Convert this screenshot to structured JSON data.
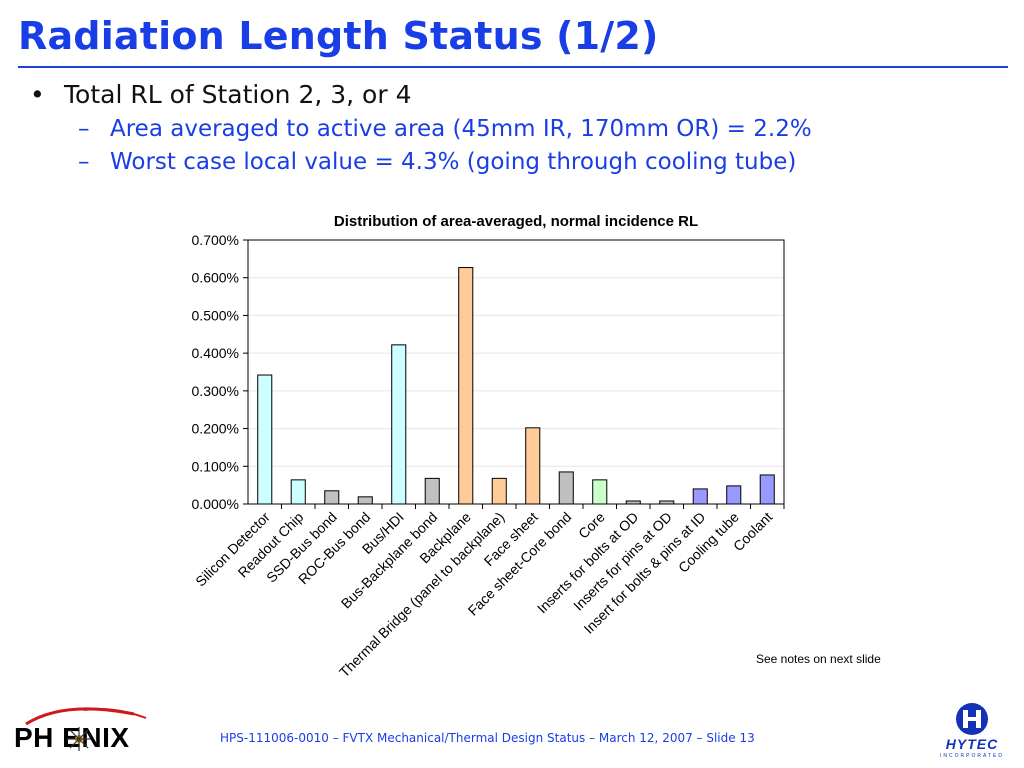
{
  "slide": {
    "title": "Radiation Length Status (1/2)",
    "bullet": "Total RL of Station 2, 3, or 4",
    "subbullets": [
      "Area averaged to active area (45mm IR, 170mm OR) = 2.2%",
      "Worst case local value = 4.3% (going through cooling tube)"
    ],
    "note": "See notes on next slide",
    "footer": "HPS-111006-0010 – FVTX Mechanical/Thermal Design Status – March 12, 2007 – Slide 13",
    "logo_left_text": "PH ENIX",
    "logo_right_text": "HYTEC",
    "logo_right_sub": "INCORPORATED",
    "colors": {
      "title": "#1a3ee6",
      "footer": "#1a3ee6"
    }
  },
  "chart_data": {
    "type": "bar",
    "title": "Distribution of area-averaged, normal incidence RL",
    "xlabel": "",
    "ylabel": "",
    "ylim": [
      0,
      0.7
    ],
    "yticks": [
      "0.000%",
      "0.100%",
      "0.200%",
      "0.300%",
      "0.400%",
      "0.500%",
      "0.600%",
      "0.700%"
    ],
    "grid": true,
    "legend": "none",
    "categories": [
      "Silicon Detector",
      "Readout Chip",
      "SSD-Bus bond",
      "ROC-Bus bond",
      "Bus/HDI",
      "Bus-Backplane bond",
      "Backplane",
      "Thermal Bridge (panel to backplane)",
      "Face sheet",
      "Face sheet-Core bond",
      "Core",
      "Inserts for bolts at OD",
      "Inserts for pins at OD",
      "Insert for bolts & pins at ID",
      "Cooling tube",
      "Coolant"
    ],
    "values": [
      0.342,
      0.064,
      0.035,
      0.019,
      0.422,
      0.068,
      0.627,
      0.068,
      0.202,
      0.085,
      0.064,
      0.008,
      0.008,
      0.04,
      0.048,
      0.077
    ],
    "bar_colors": [
      "#ccffff",
      "#ccffff",
      "#c0c0c0",
      "#c0c0c0",
      "#ccffff",
      "#c0c0c0",
      "#ffcc99",
      "#ffcc99",
      "#ffcc99",
      "#c0c0c0",
      "#ccffcc",
      "#c0c0c0",
      "#c0c0c0",
      "#9999ff",
      "#9999ff",
      "#9999ff"
    ]
  }
}
